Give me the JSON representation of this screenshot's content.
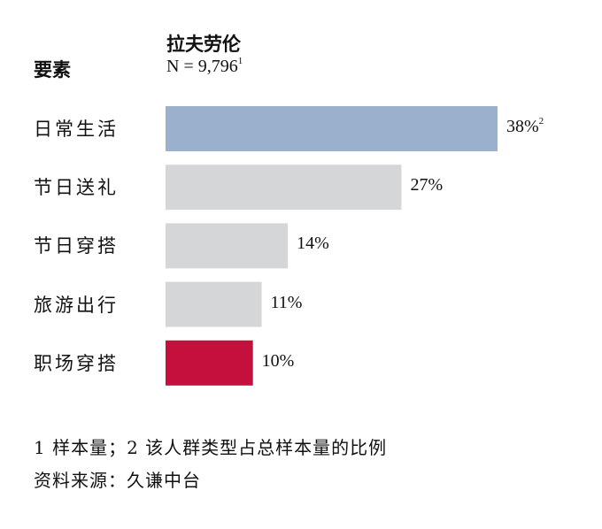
{
  "chart_data": {
    "type": "bar",
    "orientation": "horizontal",
    "column_header": "要素",
    "series_header": "拉夫劳伦",
    "sample": {
      "label": "N = 9,796",
      "footnote_mark": "1"
    },
    "categories": [
      "日常生活",
      "节日送礼",
      "节日穿搭",
      "旅游出行",
      "职场穿搭"
    ],
    "values": [
      38,
      27,
      14,
      11,
      10
    ],
    "value_labels": [
      "38%",
      "27%",
      "14%",
      "11%",
      "10%"
    ],
    "first_value_footnote_mark": "2",
    "colors": [
      "#9bb0cc",
      "#d5d6d8",
      "#d5d6d8",
      "#d5d6d8",
      "#c50f3c"
    ],
    "grid": false,
    "axes_visible": false
  },
  "footnotes": {
    "line1": "1 样本量；2 该人群类型占总样本量的比例",
    "source": "资料来源：久谦中台"
  }
}
